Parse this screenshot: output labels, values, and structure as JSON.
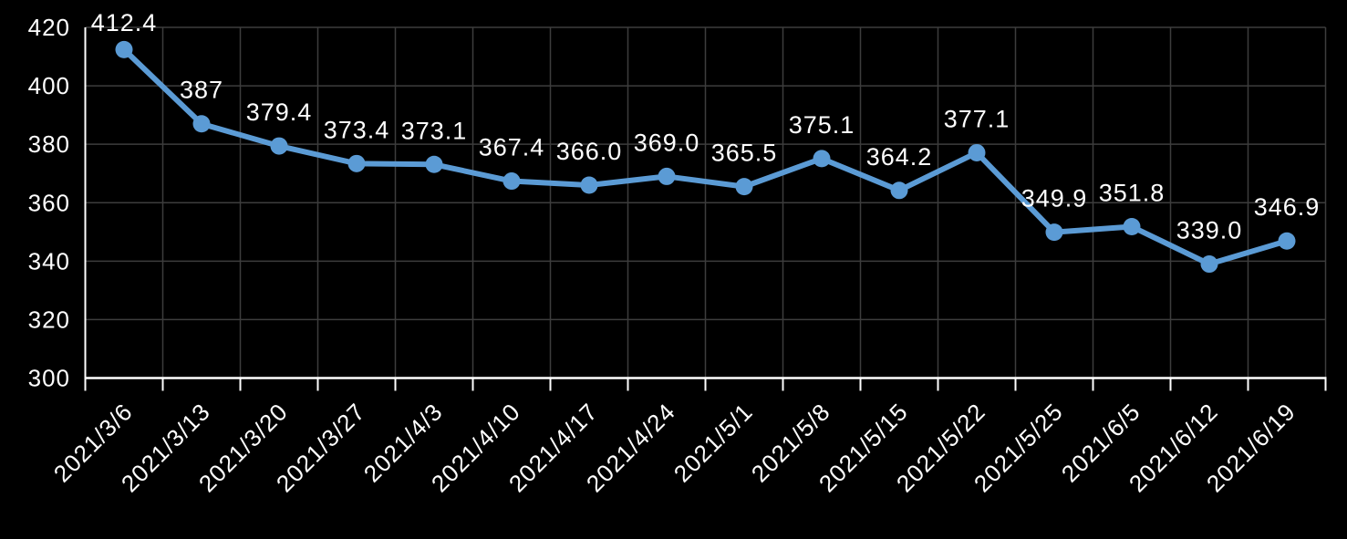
{
  "chart_data": {
    "type": "line",
    "title": "",
    "xlabel": "",
    "ylabel": "",
    "categories": [
      "2021/3/6",
      "2021/3/13",
      "2021/3/20",
      "2021/3/27",
      "2021/4/3",
      "2021/4/10",
      "2021/4/17",
      "2021/4/24",
      "2021/5/1",
      "2021/5/8",
      "2021/5/15",
      "2021/5/22",
      "2021/5/25",
      "2021/6/5",
      "2021/6/12",
      "2021/6/19"
    ],
    "values": [
      412.4,
      387,
      379.4,
      373.4,
      373.1,
      367.4,
      366.0,
      369.0,
      365.5,
      375.1,
      364.2,
      377.1,
      349.9,
      351.8,
      339.0,
      346.9
    ],
    "point_labels": [
      "412.4",
      "387",
      "379.4",
      "373.4",
      "373.1",
      "367.4",
      "366.0",
      "369.0",
      "365.5",
      "375.1",
      "364.2",
      "377.1",
      "349.9",
      "351.8",
      "339.0",
      "346.9"
    ],
    "ylim": [
      300,
      420
    ],
    "ytick_step": 20,
    "ytick_labels": [
      "300",
      "320",
      "340",
      "360",
      "380",
      "400",
      "420"
    ],
    "x_label_rotation_deg": 45,
    "grid": true,
    "legend_position": "none",
    "marker": "circle",
    "colors": {
      "background": "#000000",
      "series_line": "#5B9BD5",
      "marker_fill": "#5B9BD5",
      "gridline": "#3D3D3D",
      "axis_line": "#FFFFFF",
      "tick_label_text": "#FFFFFF",
      "data_label_text": "#FFFFFF"
    }
  }
}
